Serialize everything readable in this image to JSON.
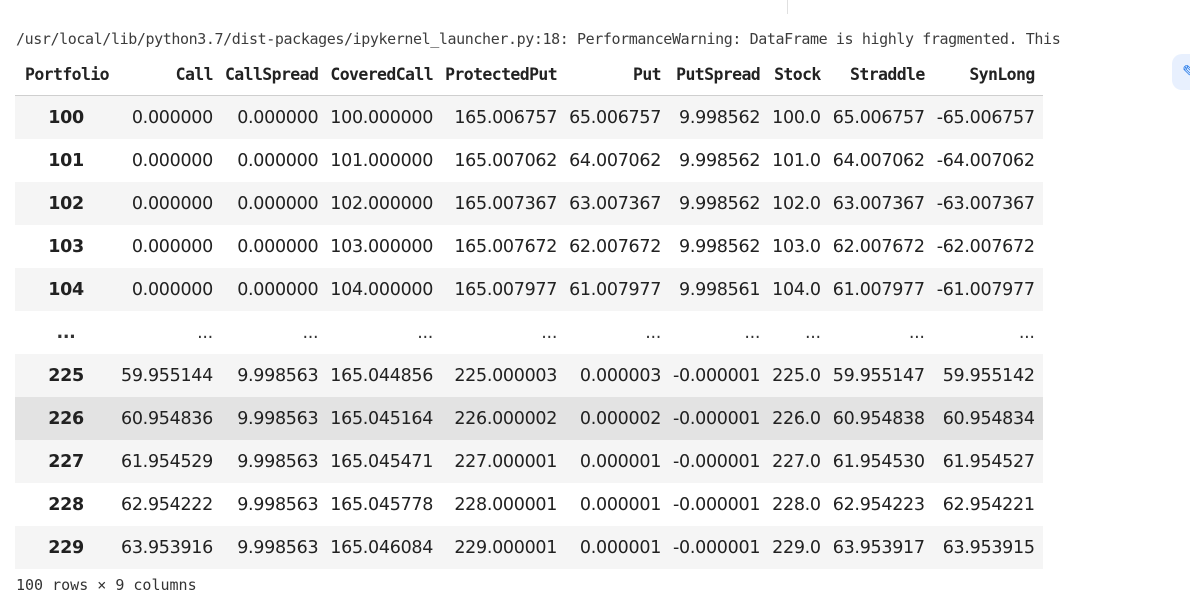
{
  "warning": "/usr/local/lib/python3.7/dist-packages/ipykernel_launcher.py:18: PerformanceWarning: DataFrame is highly fragmented.  This",
  "table": {
    "index_header": "Portfolio",
    "columns": [
      "Call",
      "CallSpread",
      "CoveredCall",
      "ProtectedPut",
      "Put",
      "PutSpread",
      "Stock",
      "Straddle",
      "SynLong"
    ],
    "rows": [
      {
        "index": "100",
        "cells": [
          "0.000000",
          "0.000000",
          "100.000000",
          "165.006757",
          "65.006757",
          "9.998562",
          "100.0",
          "65.006757",
          "-65.006757"
        ]
      },
      {
        "index": "101",
        "cells": [
          "0.000000",
          "0.000000",
          "101.000000",
          "165.007062",
          "64.007062",
          "9.998562",
          "101.0",
          "64.007062",
          "-64.007062"
        ]
      },
      {
        "index": "102",
        "cells": [
          "0.000000",
          "0.000000",
          "102.000000",
          "165.007367",
          "63.007367",
          "9.998562",
          "102.0",
          "63.007367",
          "-63.007367"
        ]
      },
      {
        "index": "103",
        "cells": [
          "0.000000",
          "0.000000",
          "103.000000",
          "165.007672",
          "62.007672",
          "9.998562",
          "103.0",
          "62.007672",
          "-62.007672"
        ]
      },
      {
        "index": "104",
        "cells": [
          "0.000000",
          "0.000000",
          "104.000000",
          "165.007977",
          "61.007977",
          "9.998561",
          "104.0",
          "61.007977",
          "-61.007977"
        ]
      },
      {
        "index": "...",
        "cells": [
          "...",
          "...",
          "...",
          "...",
          "...",
          "...",
          "...",
          "...",
          "..."
        ]
      },
      {
        "index": "225",
        "cells": [
          "59.955144",
          "9.998563",
          "165.044856",
          "225.000003",
          "0.000003",
          "-0.000001",
          "225.0",
          "59.955147",
          "59.955142"
        ]
      },
      {
        "index": "226",
        "cells": [
          "60.954836",
          "9.998563",
          "165.045164",
          "226.000002",
          "0.000002",
          "-0.000001",
          "226.0",
          "60.954838",
          "60.954834"
        ]
      },
      {
        "index": "227",
        "cells": [
          "61.954529",
          "9.998563",
          "165.045471",
          "227.000001",
          "0.000001",
          "-0.000001",
          "227.0",
          "61.954530",
          "61.954527"
        ]
      },
      {
        "index": "228",
        "cells": [
          "62.954222",
          "9.998563",
          "165.045778",
          "228.000001",
          "0.000001",
          "-0.000001",
          "228.0",
          "62.954223",
          "62.954221"
        ]
      },
      {
        "index": "229",
        "cells": [
          "63.953916",
          "9.998563",
          "165.046084",
          "229.000001",
          "0.000001",
          "-0.000001",
          "229.0",
          "63.953917",
          "63.953915"
        ]
      }
    ],
    "hovered_row": "226"
  },
  "footer": "100 rows × 9 columns",
  "side_button_icon": "pencil-icon",
  "colors": {
    "stripe": "#f5f5f5",
    "hover": "#e3e3e3",
    "accent": "#1a73e8"
  }
}
